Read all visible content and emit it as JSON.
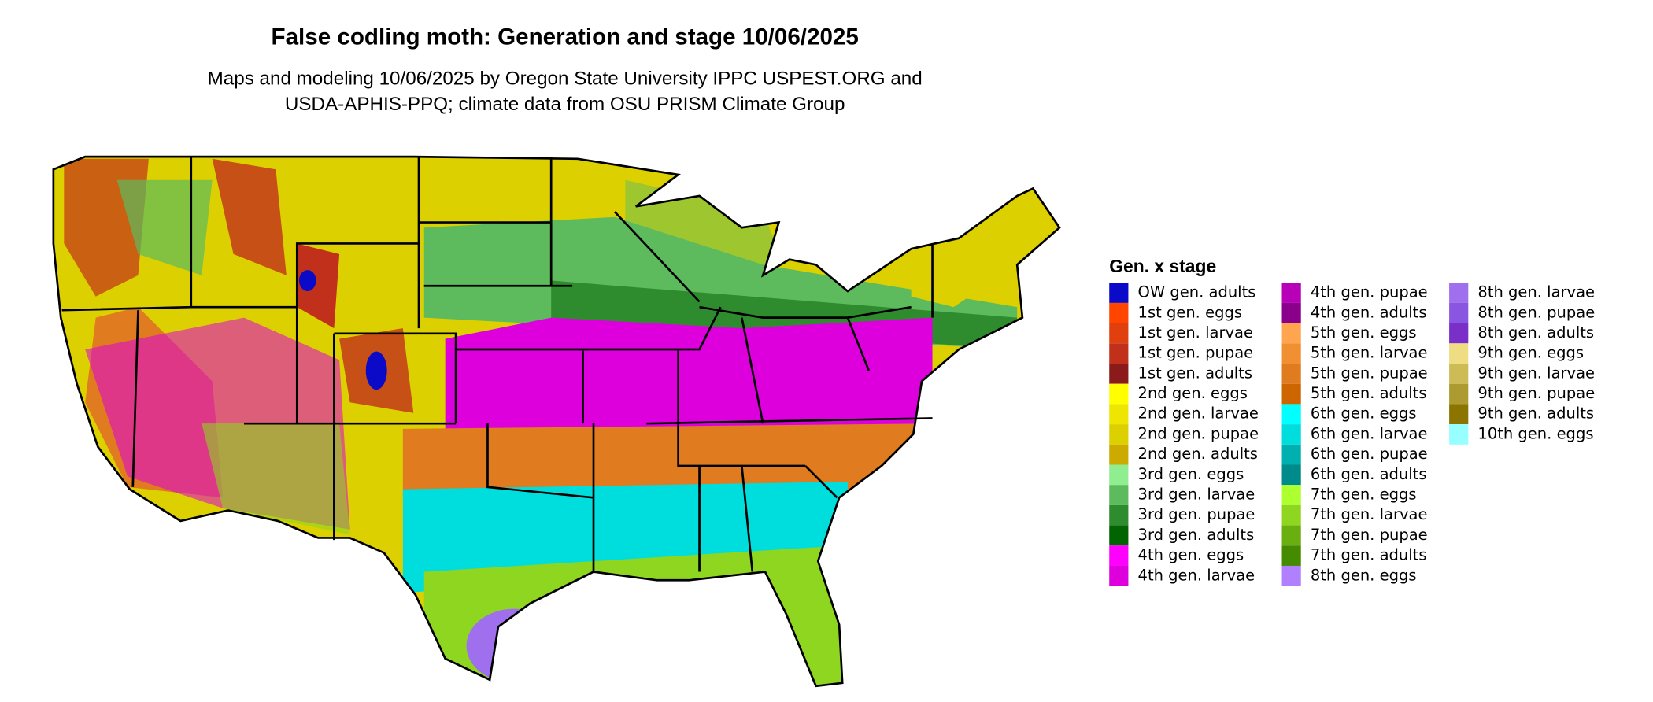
{
  "map": {
    "title": "False codling moth: Generation and stage 10/06/2025",
    "subtitle": [
      "Maps and modeling 10/06/2025 by Oregon State University IPPC USPEST.ORG and",
      "USDA-APHIS-PPQ; climate data from OSU PRISM Climate Group"
    ],
    "legend": {
      "title": "Gen. x stage",
      "items": [
        {
          "label": "OW gen. adults",
          "color": "#0a0ac8"
        },
        {
          "label": "1st gen. eggs",
          "color": "#ff4500"
        },
        {
          "label": "1st gen. larvae",
          "color": "#e0400e"
        },
        {
          "label": "1st gen. pupae",
          "color": "#c0301a"
        },
        {
          "label": "1st gen. adults",
          "color": "#8b1a1a"
        },
        {
          "label": "2nd gen. eggs",
          "color": "#ffff00"
        },
        {
          "label": "2nd gen. larvae",
          "color": "#eee600"
        },
        {
          "label": "2nd gen. pupae",
          "color": "#ddd000"
        },
        {
          "label": "2nd gen. adults",
          "color": "#ccaa00"
        },
        {
          "label": "3rd gen. eggs",
          "color": "#90ee90"
        },
        {
          "label": "3rd gen. larvae",
          "color": "#5dbb5d"
        },
        {
          "label": "3rd gen. pupae",
          "color": "#2e8b2e"
        },
        {
          "label": "3rd gen. adults",
          "color": "#006400"
        },
        {
          "label": "4th gen. eggs",
          "color": "#ff00ff"
        },
        {
          "label": "4th gen. larvae",
          "color": "#dd00dd"
        },
        {
          "label": "4th gen. pupae",
          "color": "#b800b8"
        },
        {
          "label": "4th gen. adults",
          "color": "#8b008b"
        },
        {
          "label": "5th gen. eggs",
          "color": "#ffa54f"
        },
        {
          "label": "5th gen. larvae",
          "color": "#f09030"
        },
        {
          "label": "5th gen. pupae",
          "color": "#e07b20"
        },
        {
          "label": "5th gen. adults",
          "color": "#cd6600"
        },
        {
          "label": "6th gen. eggs",
          "color": "#00ffff"
        },
        {
          "label": "6th gen. larvae",
          "color": "#00dddd"
        },
        {
          "label": "6th gen. pupae",
          "color": "#00b0b0"
        },
        {
          "label": "6th gen. adults",
          "color": "#008b8b"
        },
        {
          "label": "7th gen. eggs",
          "color": "#adff2f"
        },
        {
          "label": "7th gen. larvae",
          "color": "#8ed61f"
        },
        {
          "label": "7th gen. pupae",
          "color": "#6aaf10"
        },
        {
          "label": "7th gen. adults",
          "color": "#458b00"
        },
        {
          "label": "8th gen. eggs",
          "color": "#b080ff"
        },
        {
          "label": "8th gen. larvae",
          "color": "#9f6fee"
        },
        {
          "label": "8th gen. pupae",
          "color": "#8a55e0"
        },
        {
          "label": "8th gen. adults",
          "color": "#7a30c8"
        },
        {
          "label": "9th gen. eggs",
          "color": "#eedd82"
        },
        {
          "label": "9th gen. larvae",
          "color": "#cdbb55"
        },
        {
          "label": "9th gen. pupae",
          "color": "#ad9a30"
        },
        {
          "label": "9th gen. adults",
          "color": "#8b7500"
        },
        {
          "label": "10th gen. eggs",
          "color": "#97ffff"
        }
      ]
    }
  }
}
